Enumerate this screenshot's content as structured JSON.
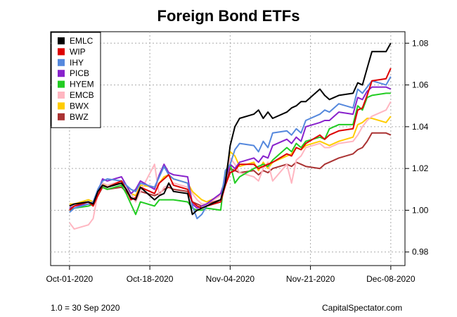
{
  "chart_data": {
    "type": "line",
    "title": "Foreign Bond ETFs",
    "xlabel": "",
    "ylabel": "",
    "x_tick_labels": [
      "Oct-01-2020",
      "Oct-18-2020",
      "Nov-04-2020",
      "Nov-21-2020",
      "Dec-08-2020"
    ],
    "x_tick_dates": [
      "2020-10-01",
      "2020-10-18",
      "2020-11-04",
      "2020-11-21",
      "2020-12-08"
    ],
    "xlim": [
      "2020-09-27",
      "2020-12-11"
    ],
    "y_ticks": [
      0.98,
      1.0,
      1.02,
      1.04,
      1.06,
      1.08
    ],
    "y_tick_labels": [
      "0.98",
      "1.00",
      "1.02",
      "1.04",
      "1.06",
      "1.08"
    ],
    "ylim": [
      0.9735,
      1.0855
    ],
    "y_axis_side": "right",
    "grid": true,
    "legend_position": "top-left",
    "x": [
      "2020-10-01",
      "2020-10-02",
      "2020-10-05",
      "2020-10-06",
      "2020-10-07",
      "2020-10-08",
      "2020-10-09",
      "2020-10-12",
      "2020-10-13",
      "2020-10-14",
      "2020-10-15",
      "2020-10-16",
      "2020-10-19",
      "2020-10-20",
      "2020-10-21",
      "2020-10-22",
      "2020-10-23",
      "2020-10-26",
      "2020-10-27",
      "2020-10-28",
      "2020-10-29",
      "2020-10-30",
      "2020-11-02",
      "2020-11-03",
      "2020-11-04",
      "2020-11-05",
      "2020-11-06",
      "2020-11-09",
      "2020-11-10",
      "2020-11-11",
      "2020-11-12",
      "2020-11-13",
      "2020-11-16",
      "2020-11-17",
      "2020-11-18",
      "2020-11-19",
      "2020-11-20",
      "2020-11-23",
      "2020-11-24",
      "2020-11-25",
      "2020-11-27",
      "2020-11-30",
      "2020-12-01",
      "2020-12-02",
      "2020-12-03",
      "2020-12-04",
      "2020-12-07",
      "2020-12-08"
    ],
    "series": [
      {
        "name": "EMLC",
        "color": "#000000",
        "values": [
          1.002,
          1.003,
          1.004,
          1.003,
          1.009,
          1.012,
          1.011,
          1.013,
          1.01,
          1.006,
          1.005,
          1.011,
          1.005,
          1.007,
          1.008,
          1.013,
          1.009,
          1.008,
          0.998,
          1.0,
          1.001,
          1.002,
          1.005,
          1.013,
          1.031,
          1.04,
          1.044,
          1.046,
          1.048,
          1.044,
          1.047,
          1.044,
          1.047,
          1.049,
          1.05,
          1.052,
          1.052,
          1.058,
          1.055,
          1.053,
          1.055,
          1.056,
          1.061,
          1.06,
          1.068,
          1.076,
          1.076,
          1.08
        ]
      },
      {
        "name": "WIP",
        "color": "#dd0000",
        "values": [
          1.0,
          1.002,
          1.004,
          1.002,
          1.007,
          1.012,
          1.011,
          1.014,
          1.01,
          1.005,
          1.006,
          1.011,
          1.008,
          1.013,
          1.015,
          1.017,
          1.012,
          1.01,
          1.004,
          1.002,
          1.001,
          1.002,
          1.004,
          1.012,
          1.018,
          1.019,
          1.022,
          1.022,
          1.02,
          1.021,
          1.022,
          1.023,
          1.027,
          1.026,
          1.03,
          1.029,
          1.032,
          1.036,
          1.034,
          1.036,
          1.038,
          1.039,
          1.048,
          1.049,
          1.055,
          1.062,
          1.063,
          1.068
        ]
      },
      {
        "name": "IHY",
        "color": "#5588dd",
        "values": [
          0.999,
          1.001,
          1.003,
          1.004,
          1.01,
          1.014,
          1.015,
          1.014,
          1.012,
          1.01,
          1.009,
          1.013,
          1.011,
          1.016,
          1.021,
          1.017,
          1.015,
          1.013,
          1.002,
          0.996,
          0.998,
          1.002,
          1.004,
          1.019,
          1.022,
          1.029,
          1.032,
          1.031,
          1.028,
          1.033,
          1.03,
          1.037,
          1.038,
          1.036,
          1.039,
          1.037,
          1.043,
          1.046,
          1.048,
          1.047,
          1.051,
          1.049,
          1.058,
          1.056,
          1.059,
          1.062,
          1.06,
          1.064
        ]
      },
      {
        "name": "PICB",
        "color": "#8822cc",
        "values": [
          1.001,
          1.002,
          1.003,
          1.003,
          1.009,
          1.015,
          1.014,
          1.016,
          1.012,
          1.008,
          1.01,
          1.014,
          1.01,
          1.017,
          1.022,
          1.018,
          1.017,
          1.016,
          1.003,
          1.001,
          1.002,
          1.003,
          1.008,
          1.015,
          1.022,
          1.02,
          1.023,
          1.025,
          1.023,
          1.026,
          1.025,
          1.031,
          1.034,
          1.032,
          1.035,
          1.033,
          1.04,
          1.042,
          1.043,
          1.043,
          1.047,
          1.046,
          1.054,
          1.053,
          1.057,
          1.059,
          1.059,
          1.058
        ]
      },
      {
        "name": "HYEM",
        "color": "#22cc22",
        "values": [
          1.0,
          1.001,
          1.002,
          1.003,
          1.009,
          1.011,
          1.01,
          1.012,
          1.008,
          1.003,
          0.998,
          1.004,
          1.002,
          1.005,
          1.005,
          1.005,
          1.005,
          1.004,
          1.001,
          1.0,
          1.0,
          1.001,
          1.0,
          1.019,
          1.022,
          1.013,
          1.016,
          1.02,
          1.021,
          1.022,
          1.021,
          1.024,
          1.03,
          1.028,
          1.032,
          1.03,
          1.033,
          1.035,
          1.034,
          1.039,
          1.041,
          1.041,
          1.05,
          1.048,
          1.054,
          1.055,
          1.056,
          1.056
        ]
      },
      {
        "name": "EMCB",
        "color": "#ffb6c1",
        "values": [
          0.994,
          0.991,
          0.993,
          0.996,
          1.008,
          1.013,
          1.012,
          1.014,
          1.01,
          1.008,
          1.004,
          1.009,
          1.022,
          1.007,
          1.011,
          1.012,
          1.013,
          1.011,
          1.008,
          1.005,
          1.003,
          1.003,
          1.007,
          1.016,
          1.025,
          1.022,
          1.018,
          1.016,
          1.014,
          1.02,
          1.023,
          1.014,
          1.022,
          1.013,
          1.024,
          1.026,
          1.03,
          1.032,
          1.03,
          1.03,
          1.032,
          1.033,
          1.036,
          1.04,
          1.043,
          1.045,
          1.048,
          1.052
        ]
      },
      {
        "name": "BWX",
        "color": "#ffcc00",
        "values": [
          1.003,
          1.003,
          1.005,
          1.004,
          1.008,
          1.013,
          1.011,
          1.014,
          1.012,
          1.008,
          1.007,
          1.012,
          1.011,
          1.013,
          1.016,
          1.017,
          1.015,
          1.013,
          1.009,
          1.007,
          1.005,
          1.004,
          1.007,
          1.016,
          1.028,
          1.026,
          1.021,
          1.023,
          1.019,
          1.023,
          1.02,
          1.023,
          1.026,
          1.027,
          1.03,
          1.029,
          1.031,
          1.033,
          1.032,
          1.031,
          1.033,
          1.035,
          1.041,
          1.042,
          1.044,
          1.044,
          1.042,
          1.045
        ]
      },
      {
        "name": "BWZ",
        "color": "#aa3333",
        "values": [
          1.002,
          1.003,
          1.004,
          1.003,
          1.007,
          1.011,
          1.01,
          1.011,
          1.009,
          1.006,
          1.005,
          1.009,
          1.007,
          1.008,
          1.01,
          1.011,
          1.01,
          1.009,
          1.004,
          1.003,
          1.002,
          1.003,
          1.005,
          1.012,
          1.02,
          1.019,
          1.018,
          1.019,
          1.017,
          1.019,
          1.018,
          1.02,
          1.022,
          1.021,
          1.023,
          1.022,
          1.021,
          1.02,
          1.022,
          1.023,
          1.025,
          1.027,
          1.029,
          1.03,
          1.033,
          1.037,
          1.037,
          1.036
        ]
      }
    ]
  },
  "footnote_left": "1.0 = 30 Sep 2020",
  "footnote_right": "CapitalSpectator.com"
}
